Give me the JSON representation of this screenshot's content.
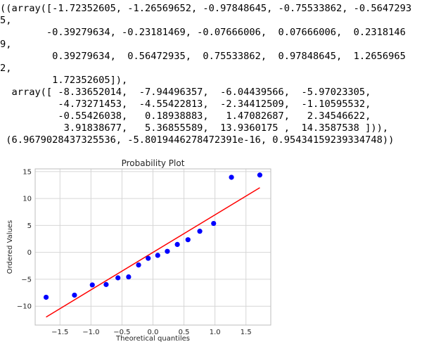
{
  "output": {
    "lines": [
      "((array([-1.72352605, -1.26569652, -0.97848645, -0.75533862, -0.5647293",
      "5,",
      "        -0.39279634, -0.23181469, -0.07666006,  0.07666006,  0.2318146",
      "9,",
      "         0.39279634,  0.56472935,  0.75533862,  0.97848645,  1.2656965",
      "2,",
      "         1.72352605]),",
      "  array([ -8.33652014,  -7.94496357,  -6.04439566,  -5.97023305,",
      "          -4.73271453,  -4.55422813,  -2.34412509,  -1.10595532,",
      "          -0.55426038,   0.18938883,   1.47082687,   2.34546622,",
      "           3.91838677,   5.36855589,  13.9360175 ,  14.3587538 ])),",
      " (6.9679028437325536, -5.8019446278472391e-16, 0.95434159239334748))"
    ]
  },
  "chart_data": {
    "type": "scatter",
    "title": "Probability Plot",
    "xlabel": "Theoretical quantiles",
    "ylabel": "Ordered Values",
    "xlim": [
      -1.9,
      1.9
    ],
    "ylim": [
      -13.5,
      15.5
    ],
    "x_ticks": [
      -1.5,
      -1.0,
      -0.5,
      0.0,
      0.5,
      1.0,
      1.5
    ],
    "x_tick_labels": [
      "−1.5",
      "−1.0",
      "−0.5",
      "0.0",
      "0.5",
      "1.0",
      "1.5"
    ],
    "y_ticks": [
      -10,
      -5,
      0,
      5,
      10,
      15
    ],
    "y_tick_labels": [
      "−10",
      "−5",
      "0",
      "5",
      "10",
      "15"
    ],
    "grid": true,
    "points": {
      "x": [
        -1.72352605,
        -1.26569652,
        -0.97848645,
        -0.75533862,
        -0.56472935,
        -0.39279634,
        -0.23181469,
        -0.07666006,
        0.07666006,
        0.23181469,
        0.39279634,
        0.56472935,
        0.75533862,
        0.97848645,
        1.26569652,
        1.72352605
      ],
      "y": [
        -8.33652014,
        -7.94496357,
        -6.04439566,
        -5.97023305,
        -4.73271453,
        -4.55422813,
        -2.34412509,
        -1.10595532,
        -0.55426038,
        0.18938883,
        1.47082687,
        2.34546622,
        3.91838677,
        5.36855589,
        13.9360175,
        14.3587538
      ],
      "color": "#0000ff"
    },
    "fit_line": {
      "slope": 6.967902843732554,
      "intercept": -5.801944627847239e-16,
      "color": "#ff0000"
    }
  }
}
